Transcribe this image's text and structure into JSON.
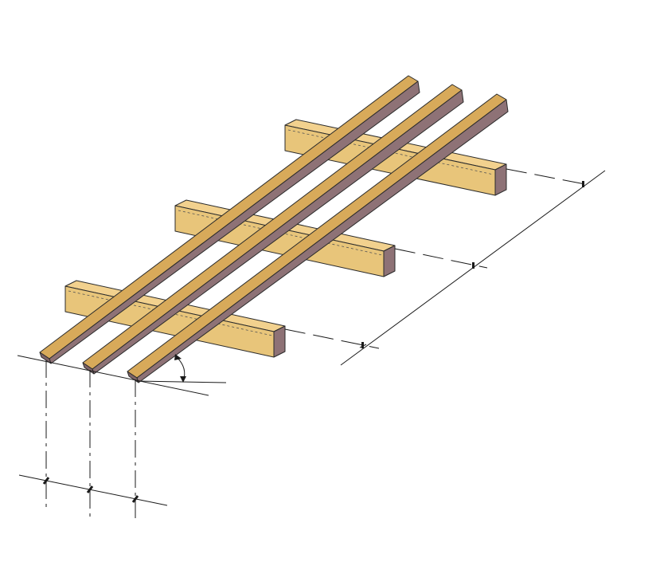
{
  "diagram": {
    "subject": "rafters-on-purlins",
    "rafters": [
      "rafter-1",
      "rafter-2",
      "rafter-3"
    ],
    "purlins": [
      "purlin-front",
      "purlin-middle",
      "purlin-back"
    ],
    "colors": {
      "rafter_top": "#D8AA5A",
      "rafter_side": "#8E7276",
      "rafter_end": "#7E6468",
      "purlin_top": "#F2D18E",
      "purlin_side": "#E8C57A",
      "purlin_end": "#8E7276",
      "line": "#1a1a1a"
    }
  }
}
